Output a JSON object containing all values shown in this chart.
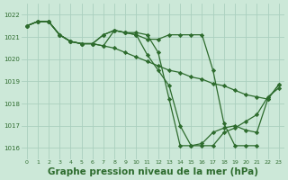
{
  "background_color": "#cce8d8",
  "grid_color": "#aacfbe",
  "line_color": "#2d6b2d",
  "marker_color": "#2d6b2d",
  "xlabel": "Graphe pression niveau de la mer (hPa)",
  "xlabel_fontsize": 7.5,
  "ylim": [
    1015.5,
    1022.5
  ],
  "xlim": [
    -0.5,
    23.5
  ],
  "yticks": [
    1016,
    1017,
    1018,
    1019,
    1020,
    1021,
    1022
  ],
  "xticks": [
    0,
    1,
    2,
    3,
    4,
    5,
    6,
    7,
    8,
    9,
    10,
    11,
    12,
    13,
    14,
    15,
    16,
    17,
    18,
    19,
    20,
    21,
    22,
    23
  ],
  "series": [
    {
      "x": [
        0,
        1,
        2,
        3,
        4,
        5,
        6,
        7,
        8,
        9,
        10,
        11,
        12,
        13,
        14,
        15,
        16,
        17,
        18,
        19,
        20,
        21
      ],
      "y": [
        1021.5,
        1021.7,
        1021.7,
        1021.1,
        1020.8,
        1020.7,
        1020.7,
        1021.1,
        1021.3,
        1021.2,
        1021.1,
        1020.9,
        1020.9,
        1021.1,
        1021.1,
        1021.1,
        1021.1,
        1019.5,
        1017.1,
        1016.1,
        1016.1,
        1016.1
      ]
    },
    {
      "x": [
        0,
        1,
        2,
        3,
        4,
        5,
        6,
        7,
        8,
        9,
        10,
        11,
        12,
        13,
        14,
        15,
        16,
        17,
        18,
        19,
        20,
        21,
        22,
        23
      ],
      "y": [
        1021.5,
        1021.7,
        1021.7,
        1021.1,
        1020.8,
        1020.7,
        1020.7,
        1020.6,
        1020.5,
        1020.3,
        1020.1,
        1019.9,
        1019.7,
        1019.5,
        1019.4,
        1019.2,
        1019.1,
        1018.9,
        1018.8,
        1018.6,
        1018.4,
        1018.3,
        1018.2,
        1018.85
      ]
    },
    {
      "x": [
        0,
        1,
        2,
        3,
        4,
        5,
        6,
        7,
        8,
        9,
        10,
        11,
        12,
        13,
        14,
        15,
        16,
        17,
        18,
        19,
        20,
        21,
        22,
        23
      ],
      "y": [
        1021.5,
        1021.7,
        1021.7,
        1021.1,
        1020.8,
        1020.7,
        1020.7,
        1021.1,
        1021.3,
        1021.2,
        1021.1,
        1020.2,
        1019.5,
        1018.8,
        1017.0,
        1016.1,
        1016.1,
        1016.1,
        1016.7,
        1016.9,
        1017.2,
        1017.5,
        1018.3,
        1018.7
      ]
    },
    {
      "x": [
        0,
        1,
        2,
        3,
        4,
        5,
        6,
        7,
        8,
        9,
        10,
        11,
        12,
        13,
        14,
        15,
        16,
        17,
        18,
        19,
        20,
        21,
        22,
        23
      ],
      "y": [
        1021.5,
        1021.7,
        1021.7,
        1021.1,
        1020.8,
        1020.7,
        1020.7,
        1020.6,
        1021.3,
        1021.2,
        1021.2,
        1021.1,
        1020.3,
        1018.2,
        1016.1,
        1016.1,
        1016.2,
        1016.7,
        1016.9,
        1017.0,
        1016.8,
        1016.7,
        1018.2,
        1018.85
      ]
    }
  ]
}
